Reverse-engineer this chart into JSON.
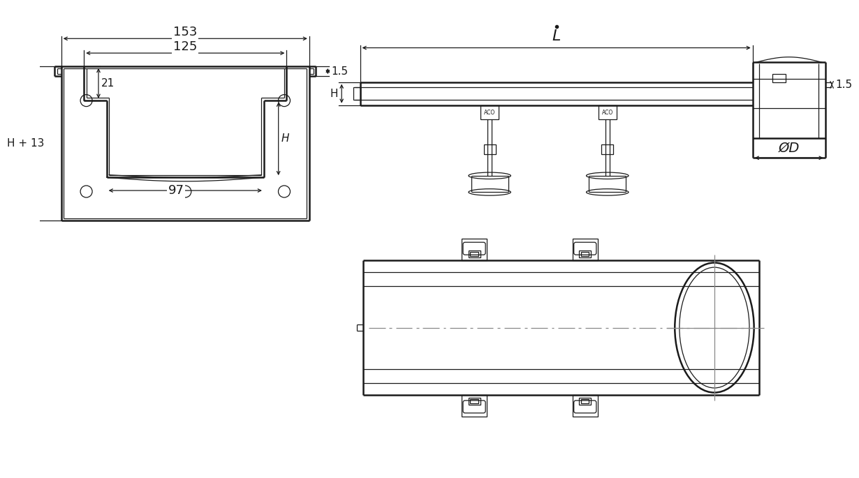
{
  "bg_color": "#ffffff",
  "line_color": "#1a1a1a",
  "dim_color": "#1a1a1a",
  "gray": "#888888",
  "labels": {
    "dim_153": "153",
    "dim_125": "125",
    "dim_97": "97",
    "dim_21": "21",
    "dim_H13": "H + 13",
    "dim_H": "H",
    "dim_15": "1.5",
    "dim_L": "L",
    "dim_OD": "ØD"
  }
}
